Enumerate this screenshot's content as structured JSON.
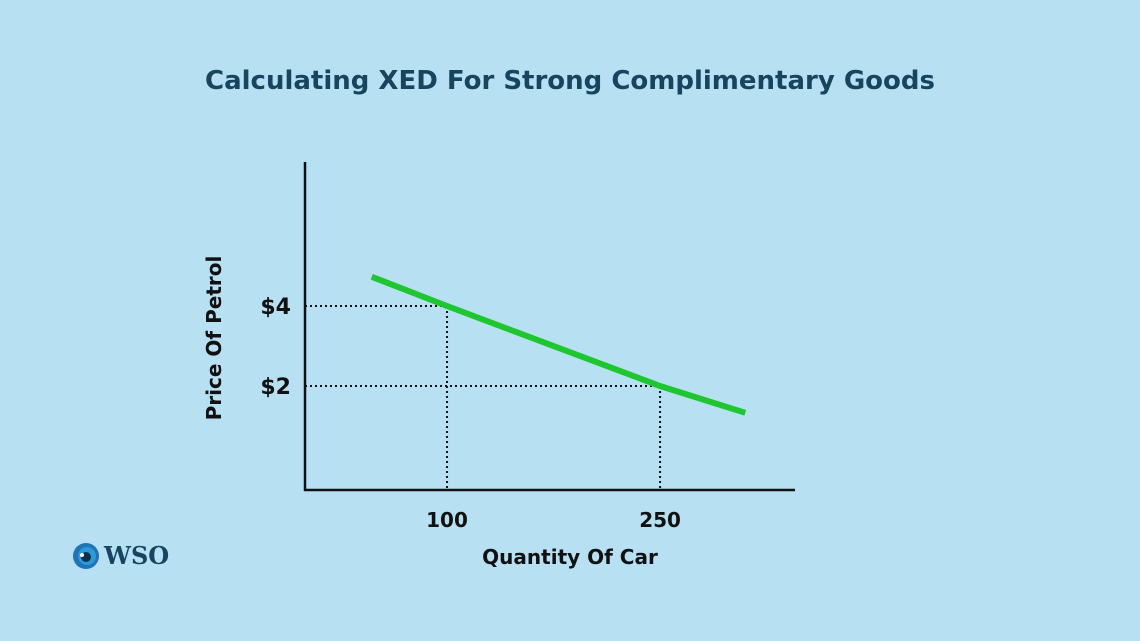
{
  "chart_data": {
    "type": "line",
    "title": "Calculating XED For Strong Complimentary Goods",
    "xlabel": "Quantity Of Car",
    "ylabel": "Price Of Petrol",
    "xlim": [
      0,
      345
    ],
    "ylim": [
      -0.6,
      7.6
    ],
    "grid": false,
    "legend": "none",
    "x_ticks": [
      {
        "value": 100,
        "label": "100"
      },
      {
        "value": 250,
        "label": "250"
      }
    ],
    "y_ticks": [
      {
        "value": 4,
        "label": "$4"
      },
      {
        "value": 2,
        "label": "$2"
      }
    ],
    "series": [
      {
        "color": "#1ec62f",
        "points": [
          [
            47,
            4.73
          ],
          [
            100,
            4
          ],
          [
            250,
            2
          ],
          [
            310,
            1.33
          ]
        ]
      }
    ],
    "reference_points": [
      [
        100,
        4
      ],
      [
        250,
        2
      ]
    ]
  },
  "logo": {
    "text": "WSO"
  }
}
